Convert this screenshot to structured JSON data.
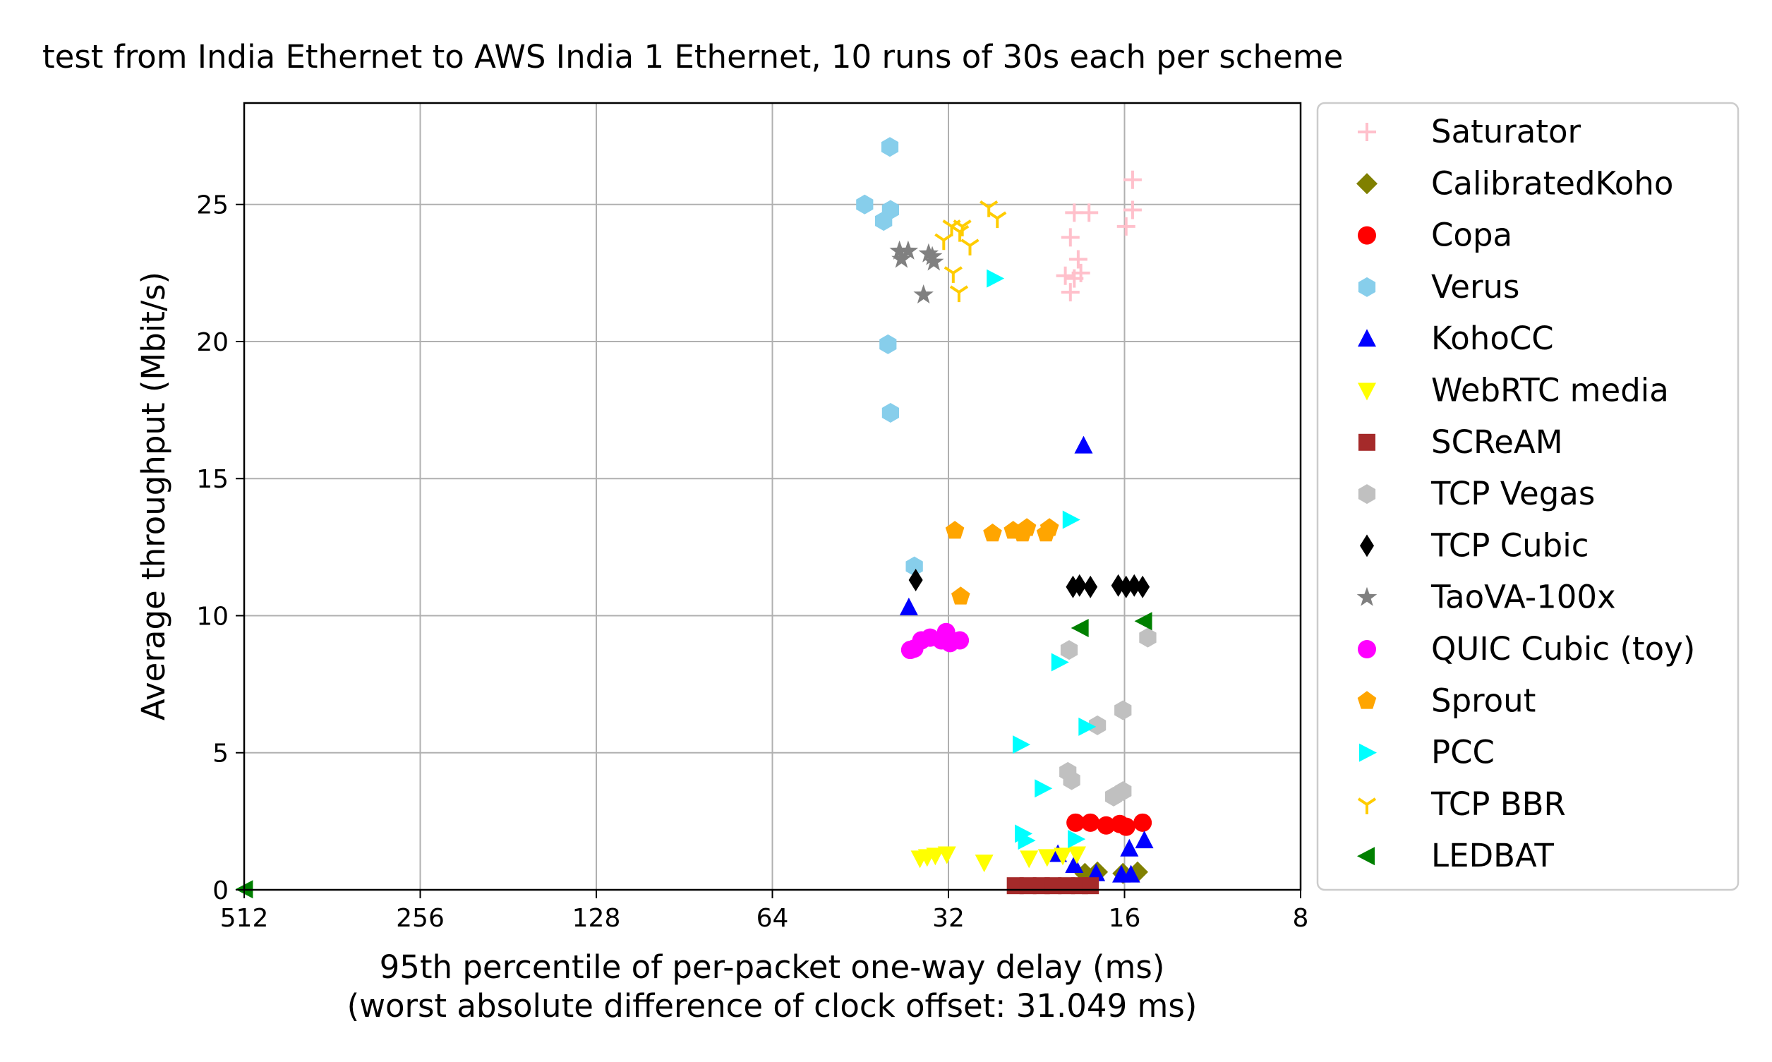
{
  "chart_data": {
    "type": "scatter",
    "title": "test from India Ethernet to AWS India 1 Ethernet, 10 runs of 30s each per scheme",
    "xlabel_line1": "95th percentile of per-packet one-way delay (ms)",
    "xlabel_line2": "(worst absolute difference of clock offset: 31.049 ms)",
    "ylabel": "Average throughput (Mbit/s)",
    "x_scale": "log2",
    "x_inverted": true,
    "xlim": [
      512,
      8
    ],
    "ylim": [
      0,
      28.7
    ],
    "x_ticks": [
      512,
      256,
      128,
      64,
      32,
      16,
      8
    ],
    "x_tick_labels": [
      "512",
      "256",
      "128",
      "64",
      "32",
      "16",
      "8"
    ],
    "y_ticks": [
      0,
      5,
      10,
      15,
      20,
      25
    ],
    "y_tick_labels": [
      "0",
      "5",
      "10",
      "15",
      "20",
      "25"
    ],
    "grid": true,
    "legend_position": "outside-right",
    "series": [
      {
        "name": "Saturator",
        "marker": "plus",
        "color": "#ffc0cb",
        "points": [
          [
            15.5,
            25.9
          ],
          [
            15.5,
            24.8
          ],
          [
            15.9,
            24.2
          ],
          [
            19.5,
            24.7
          ],
          [
            18.4,
            24.7
          ],
          [
            19.2,
            23.0
          ],
          [
            19.0,
            22.5
          ],
          [
            19.5,
            22.3
          ],
          [
            20.2,
            22.4
          ],
          [
            19.8,
            21.8
          ],
          [
            19.8,
            23.8
          ]
        ]
      },
      {
        "name": "CalibratedKoho",
        "marker": "diamond",
        "color": "#808000",
        "points": [
          [
            15.2,
            0.65
          ],
          [
            16.1,
            0.6
          ],
          [
            17.8,
            0.65
          ],
          [
            18.7,
            0.6
          ]
        ]
      },
      {
        "name": "Copa",
        "marker": "circle",
        "color": "#ff0000",
        "points": [
          [
            19.4,
            2.45
          ],
          [
            18.3,
            2.45
          ],
          [
            17.2,
            2.35
          ],
          [
            16.3,
            2.4
          ],
          [
            15.9,
            2.3
          ],
          [
            14.9,
            2.45
          ]
        ]
      },
      {
        "name": "Verus",
        "marker": "hexagon",
        "color": "#87ceeb",
        "points": [
          [
            40.3,
            27.1
          ],
          [
            44.5,
            25.0
          ],
          [
            40.2,
            24.8
          ],
          [
            41.3,
            24.4
          ],
          [
            40.6,
            19.9
          ],
          [
            40.2,
            17.4
          ],
          [
            36.6,
            11.8
          ]
        ]
      },
      {
        "name": "KohoCC",
        "marker": "triangle-up",
        "color": "#0000ff",
        "points": [
          [
            18.8,
            16.2
          ],
          [
            37.4,
            10.3
          ],
          [
            14.8,
            1.8
          ],
          [
            15.7,
            1.5
          ],
          [
            20.8,
            1.3
          ],
          [
            19.5,
            0.9
          ],
          [
            17.9,
            0.6
          ],
          [
            16.2,
            0.55
          ],
          [
            15.6,
            0.55
          ]
        ]
      },
      {
        "name": "WebRTC media",
        "marker": "triangle-down",
        "color": "#ffff00",
        "points": [
          [
            33.7,
            1.25
          ],
          [
            32.2,
            1.3
          ],
          [
            35.8,
            1.15
          ],
          [
            34.8,
            1.2
          ],
          [
            27.8,
            1.0
          ],
          [
            23.3,
            1.15
          ],
          [
            21.7,
            1.2
          ],
          [
            20.4,
            1.25
          ],
          [
            19.3,
            1.3
          ]
        ]
      },
      {
        "name": "SCReAM",
        "marker": "square",
        "color": "#a52a2a",
        "points": [
          [
            24.6,
            0.15
          ],
          [
            23.4,
            0.15
          ],
          [
            22.2,
            0.15
          ],
          [
            21.2,
            0.15
          ],
          [
            20.1,
            0.15
          ],
          [
            19.1,
            0.15
          ],
          [
            18.3,
            0.15
          ]
        ]
      },
      {
        "name": "TCP Vegas",
        "marker": "hexagon",
        "color": "#c0c0c0",
        "points": [
          [
            14.6,
            9.2
          ],
          [
            19.9,
            8.75
          ],
          [
            17.8,
            6.0
          ],
          [
            16.1,
            6.55
          ],
          [
            20.0,
            4.3
          ],
          [
            19.7,
            4.0
          ],
          [
            16.7,
            3.4
          ],
          [
            16.1,
            3.6
          ]
        ]
      },
      {
        "name": "TCP Cubic",
        "marker": "thin-diamond",
        "color": "#000000",
        "points": [
          [
            36.4,
            11.3
          ],
          [
            19.6,
            11.05
          ],
          [
            19.1,
            11.1
          ],
          [
            18.3,
            11.05
          ],
          [
            16.4,
            11.1
          ],
          [
            15.9,
            11.05
          ],
          [
            15.4,
            11.1
          ],
          [
            14.9,
            11.05
          ]
        ]
      },
      {
        "name": "TaoVA-100x",
        "marker": "star",
        "color": "#808080",
        "points": [
          [
            38.8,
            23.3
          ],
          [
            37.5,
            23.3
          ],
          [
            38.5,
            23.0
          ],
          [
            34.6,
            23.2
          ],
          [
            33.9,
            22.9
          ],
          [
            34.1,
            23.1
          ],
          [
            35.3,
            21.7
          ]
        ]
      },
      {
        "name": "QUIC Cubic (toy)",
        "marker": "circle",
        "color": "#ff00ff",
        "points": [
          [
            37.2,
            8.75
          ],
          [
            36.6,
            8.8
          ],
          [
            35.6,
            9.1
          ],
          [
            34.4,
            9.2
          ],
          [
            32.9,
            9.1
          ],
          [
            32.3,
            9.4
          ],
          [
            31.8,
            9.0
          ],
          [
            30.6,
            9.1
          ]
        ]
      },
      {
        "name": "Sprout",
        "marker": "pentagon",
        "color": "#ffa500",
        "points": [
          [
            31.2,
            13.1
          ],
          [
            30.5,
            10.7
          ],
          [
            26.9,
            13.0
          ],
          [
            24.8,
            13.1
          ],
          [
            23.9,
            13.0
          ],
          [
            23.5,
            13.2
          ],
          [
            21.8,
            13.0
          ],
          [
            21.5,
            13.2
          ]
        ]
      },
      {
        "name": "PCC",
        "marker": "triangle-right",
        "color": "#00ffff",
        "points": [
          [
            26.7,
            22.3
          ],
          [
            19.8,
            13.5
          ],
          [
            18.6,
            5.95
          ],
          [
            20.7,
            8.3
          ],
          [
            24.1,
            5.3
          ],
          [
            22.1,
            3.7
          ],
          [
            23.9,
            2.05
          ],
          [
            23.6,
            1.8
          ],
          [
            19.4,
            1.85
          ]
        ]
      },
      {
        "name": "TCP BBR",
        "marker": "tri-down",
        "color": "#ffcc00",
        "points": [
          [
            27.3,
            24.9
          ],
          [
            26.4,
            24.5
          ],
          [
            31.6,
            24.2
          ],
          [
            30.3,
            24.2
          ],
          [
            32.6,
            23.7
          ],
          [
            29.4,
            23.5
          ],
          [
            30.6,
            24.0
          ],
          [
            31.4,
            22.5
          ],
          [
            30.7,
            21.8
          ]
        ]
      },
      {
        "name": "LEDBAT",
        "marker": "triangle-left",
        "color": "#008000",
        "points": [
          [
            510,
            0.02
          ],
          [
            19.0,
            9.55
          ],
          [
            14.8,
            9.8
          ]
        ]
      }
    ]
  }
}
